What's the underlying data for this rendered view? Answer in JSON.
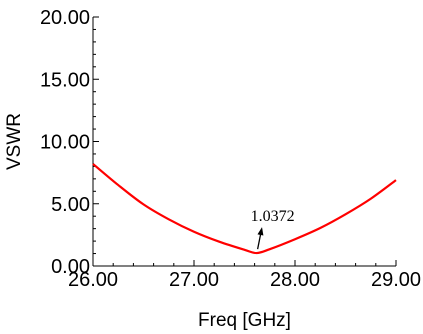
{
  "chart_data": {
    "type": "line",
    "title": "",
    "xlabel": "Freq [GHz]",
    "ylabel": "VSWR",
    "xlim": [
      26.0,
      29.0
    ],
    "ylim": [
      0.0,
      20.0
    ],
    "xticks": [
      26.0,
      27.0,
      28.0,
      29.0
    ],
    "xtick_labels": [
      "26.00",
      "27.00",
      "28.00",
      "29.00"
    ],
    "yticks": [
      0.0,
      5.0,
      10.0,
      15.0,
      20.0
    ],
    "ytick_labels": [
      "0.00",
      "5.00",
      "10.00",
      "15.00",
      "20.00"
    ],
    "grid": false,
    "series": [
      {
        "color": "#ff0000",
        "x": [
          26.0,
          26.25,
          26.5,
          26.75,
          27.0,
          27.25,
          27.5,
          27.62,
          27.75,
          28.0,
          28.25,
          28.5,
          28.75,
          29.0
        ],
        "y": [
          8.2,
          6.5,
          4.95,
          3.75,
          2.75,
          1.95,
          1.3,
          1.04,
          1.35,
          2.15,
          3.05,
          4.15,
          5.4,
          6.9
        ]
      }
    ],
    "annotations": [
      {
        "text": "1.0372",
        "x": 27.62,
        "y": 1.0372
      }
    ]
  }
}
